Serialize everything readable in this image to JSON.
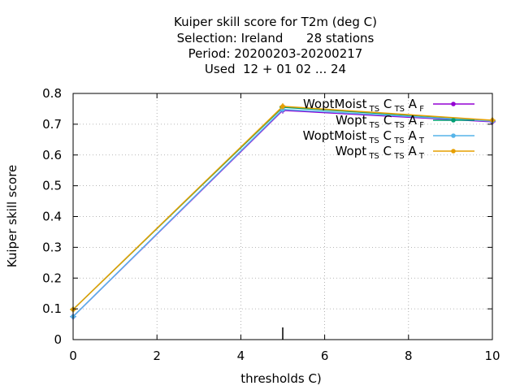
{
  "chart_data": {
    "type": "line",
    "title_lines": [
      "Kuiper skill score  for T2m (deg C)",
      "Selection: Ireland      28 stations",
      "Period: 20200203-20200217",
      "Used  12 + 01 02 ... 24"
    ],
    "xlabel": "thresholds C)",
    "ylabel": "Kuiper skill score",
    "xlim": [
      0,
      10
    ],
    "ylim": [
      0,
      0.8
    ],
    "xticks": [
      0,
      2,
      4,
      6,
      8,
      10
    ],
    "yticks": [
      0,
      0.1,
      0.2,
      0.3,
      0.4,
      0.5,
      0.6,
      0.7,
      0.8
    ],
    "grid": true,
    "legend_position": "top-right",
    "sample_marker_x": 5,
    "series": [
      {
        "name_main": "WoptMoist",
        "name_parts": [
          [
            "TS",
            "C"
          ],
          [
            "TS",
            "A"
          ],
          [
            "F",
            ""
          ]
        ],
        "color": "#9400d3",
        "x": [
          0,
          5,
          10
        ],
        "y": [
          0.075,
          0.745,
          0.708
        ]
      },
      {
        "name_main": "Wopt",
        "name_parts": [
          [
            "TS",
            "C"
          ],
          [
            "TS",
            "A"
          ],
          [
            "F",
            ""
          ]
        ],
        "color": "#009e73",
        "x": [
          0,
          5,
          10
        ],
        "y": [
          0.098,
          0.755,
          0.712
        ]
      },
      {
        "name_main": "WoptMoist",
        "name_parts": [
          [
            "TS",
            "C"
          ],
          [
            "TS",
            "A"
          ],
          [
            "T",
            ""
          ]
        ],
        "color": "#56b4e9",
        "x": [
          0,
          5,
          10
        ],
        "y": [
          0.075,
          0.748,
          0.71
        ]
      },
      {
        "name_main": "Wopt",
        "name_parts": [
          [
            "TS",
            "C"
          ],
          [
            "TS",
            "A"
          ],
          [
            "T",
            ""
          ]
        ],
        "color": "#e69f00",
        "x": [
          0,
          5,
          10
        ],
        "y": [
          0.098,
          0.758,
          0.713
        ]
      }
    ]
  }
}
